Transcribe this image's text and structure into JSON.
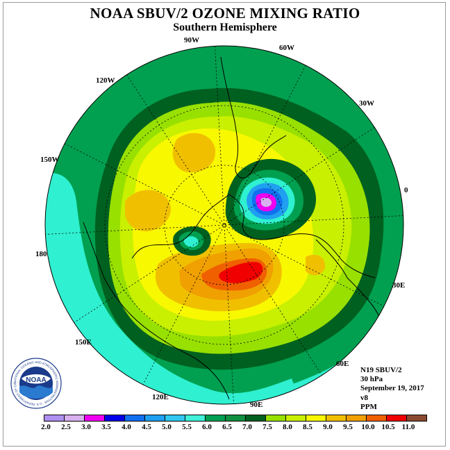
{
  "title": "NOAA SBUV/2 OZONE MIXING RATIO",
  "subtitle": "Southern Hemisphere",
  "longitude_labels": {
    "lon_90W": "90W",
    "lon_60W": "60W",
    "lon_120W": "120W",
    "lon_30W": "30W",
    "lon_150W": "150W",
    "lon_0": "0",
    "lon_180": "180",
    "lon_30E": "30E",
    "lon_150E": "150E",
    "lon_60E": "60E",
    "lon_120E": "120E",
    "lon_90E": "90E"
  },
  "info": {
    "satellite": "N19 SBUV/2",
    "level": "30 hPa",
    "date": "September 19, 2017",
    "version": "v8",
    "units": "PPM"
  },
  "logo": {
    "text": "NOAA",
    "ring_text": "NATIONAL OCEANIC AND ATMOSPHERIC ADMINISTRATION · U.S. DEPARTMENT OF COMMERCE"
  },
  "colorbar": {
    "ticks": [
      "2.0",
      "2.5",
      "3.0",
      "3.5",
      "4.0",
      "4.5",
      "5.0",
      "5.5",
      "6.0",
      "6.5",
      "7.0",
      "7.5",
      "8.0",
      "8.5",
      "9.0",
      "9.5",
      "10.0",
      "10.5",
      "11.0"
    ],
    "colors": [
      "#b090f0",
      "#d8b0f0",
      "#f000f0",
      "#0000e8",
      "#1070f0",
      "#20a0f0",
      "#30c8f0",
      "#40f0d8",
      "#00a050",
      "#109040",
      "#006020",
      "#98e000",
      "#c8f000",
      "#f8f800",
      "#f0c000",
      "#f0a000",
      "#f06000",
      "#f00000",
      "#8a4a30"
    ]
  },
  "map_colors": {
    "ocean_band": "#2ff0d0",
    "outer_green": "#00a050",
    "dark_green": "#006020",
    "lime": "#98e000",
    "yellow_green": "#c8f000",
    "yellow": "#f8f800",
    "gold": "#f0c000",
    "orange": "#f0a000",
    "red_orange": "#f06000",
    "red": "#f00000",
    "blue": "#1070f0",
    "light_blue": "#20a0f0",
    "magenta": "#f000f0",
    "lavender": "#d8b0f0"
  }
}
